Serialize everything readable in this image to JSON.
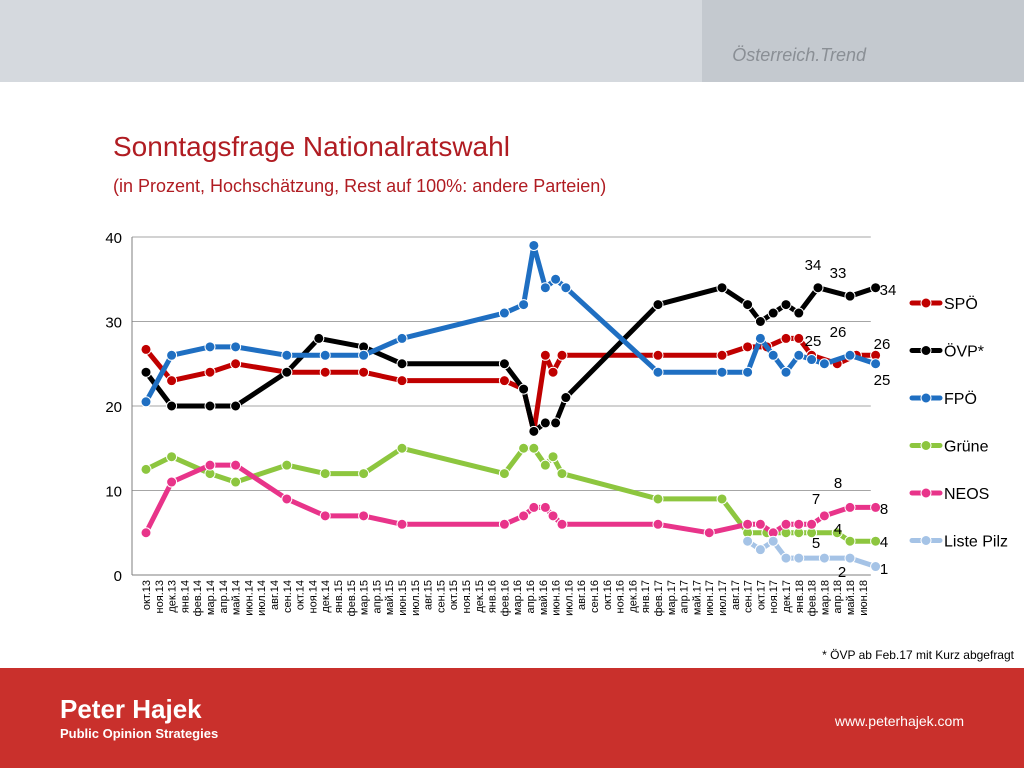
{
  "header": {
    "brand": "Österreich.Trend"
  },
  "titles": {
    "title": "Sonntagsfrage Nationalratswahl",
    "subtitle": "(in Prozent, Hochschätzung, Rest auf 100%: andere Parteien)"
  },
  "footnote": "* ÖVP ab Feb.17 mit Kurz abgefragt",
  "footer": {
    "name": "Peter Hajek",
    "subtitle": "Public Opinion Strategies",
    "url": "www.peterhajek.com"
  },
  "chart_data": {
    "type": "line",
    "title": "Sonntagsfrage Nationalratswahl",
    "subtitle": "(in Prozent, Hochschätzung, Rest auf 100%: andere Parteien)",
    "ylim": [
      0,
      40
    ],
    "yticks": [
      0,
      10,
      20,
      30,
      40
    ],
    "grid": true,
    "legend_position": "right",
    "categories": [
      "окт.13",
      "ноя.13",
      "дек.13",
      "янв.14",
      "фев.14",
      "мар.14",
      "апр.14",
      "май.14",
      "июн.14",
      "июл.14",
      "авг.14",
      "сен.14",
      "окт.14",
      "ноя.14",
      "дек.14",
      "янв.15",
      "фев.15",
      "мар.15",
      "апр.15",
      "май.15",
      "июн.15",
      "июл.15",
      "авг.15",
      "сен.15",
      "окт.15",
      "ноя.15",
      "дек.15",
      "янв.16",
      "фев.16",
      "мар.16",
      "апр.16",
      "май.16",
      "июн.16",
      "июл.16",
      "авг.16",
      "сен.16",
      "окт.16",
      "ноя.16",
      "дек.16",
      "янв.17",
      "фев.17",
      "мар.17",
      "апр.17",
      "май.17",
      "июн.17",
      "июл.17",
      "авг.17",
      "сен.17",
      "окт.17",
      "ноя.17",
      "дек.17",
      "янв.18",
      "фев.18",
      "мар.18",
      "апр.18",
      "май.18",
      "июн.18"
    ],
    "series": [
      {
        "name": "SPÖ",
        "color": "#c00000",
        "points": [
          [
            0,
            26.7
          ],
          [
            2,
            23
          ],
          [
            5,
            24
          ],
          [
            7,
            25
          ],
          [
            11,
            24
          ],
          [
            14,
            24
          ],
          [
            17,
            24
          ],
          [
            20,
            23
          ],
          [
            28,
            23
          ],
          [
            29.5,
            22
          ],
          [
            30.3,
            17
          ],
          [
            31.2,
            26
          ],
          [
            31.8,
            24
          ],
          [
            32.5,
            26
          ],
          [
            40,
            26
          ],
          [
            45,
            26
          ],
          [
            47,
            27
          ],
          [
            48.5,
            27
          ],
          [
            50,
            28
          ],
          [
            51,
            28
          ],
          [
            52,
            26
          ],
          [
            54,
            25
          ],
          [
            55.5,
            26
          ],
          [
            57,
            26
          ]
        ]
      },
      {
        "name": "ÖVP*",
        "color": "#000000",
        "points": [
          [
            0,
            24
          ],
          [
            2,
            20
          ],
          [
            5,
            20
          ],
          [
            7,
            20
          ],
          [
            11,
            24
          ],
          [
            13.5,
            28
          ],
          [
            17,
            27
          ],
          [
            20,
            25
          ],
          [
            28,
            25
          ],
          [
            29.5,
            22
          ],
          [
            30.3,
            17
          ],
          [
            31.2,
            18
          ],
          [
            32,
            18
          ],
          [
            32.8,
            21
          ],
          [
            40,
            32
          ],
          [
            45,
            34
          ],
          [
            47,
            32
          ],
          [
            48,
            30
          ],
          [
            49,
            31
          ],
          [
            50,
            32
          ],
          [
            51,
            31
          ],
          [
            52.5,
            34
          ],
          [
            55,
            33
          ],
          [
            57,
            34
          ]
        ]
      },
      {
        "name": "FPÖ",
        "color": "#1f6fc2",
        "points": [
          [
            0,
            20.5
          ],
          [
            2,
            26
          ],
          [
            5,
            27
          ],
          [
            7,
            27
          ],
          [
            11,
            26
          ],
          [
            14,
            26
          ],
          [
            17,
            26
          ],
          [
            20,
            28
          ],
          [
            28,
            31
          ],
          [
            29.5,
            32
          ],
          [
            30.3,
            39
          ],
          [
            31.2,
            34
          ],
          [
            32,
            35
          ],
          [
            32.8,
            34
          ],
          [
            40,
            24
          ],
          [
            45,
            24
          ],
          [
            47,
            24
          ],
          [
            48,
            28
          ],
          [
            49,
            26
          ],
          [
            50,
            24
          ],
          [
            51,
            26
          ],
          [
            52,
            25.5
          ],
          [
            53,
            25
          ],
          [
            55,
            26
          ],
          [
            57,
            25
          ]
        ]
      },
      {
        "name": "Grüne",
        "color": "#8dc63f",
        "points": [
          [
            0,
            12.5
          ],
          [
            2,
            14
          ],
          [
            5,
            12
          ],
          [
            7,
            11
          ],
          [
            11,
            13
          ],
          [
            14,
            12
          ],
          [
            17,
            12
          ],
          [
            20,
            15
          ],
          [
            28,
            12
          ],
          [
            29.5,
            15
          ],
          [
            30.3,
            15
          ],
          [
            31.2,
            13
          ],
          [
            31.8,
            14
          ],
          [
            32.5,
            12
          ],
          [
            40,
            9
          ],
          [
            45,
            9
          ],
          [
            47,
            5
          ],
          [
            48.5,
            5
          ],
          [
            50,
            5
          ],
          [
            51,
            5
          ],
          [
            52,
            5
          ],
          [
            54,
            5
          ],
          [
            55,
            4
          ],
          [
            57,
            4
          ]
        ]
      },
      {
        "name": "NEOS",
        "color": "#e8348a",
        "points": [
          [
            0,
            5
          ],
          [
            2,
            11
          ],
          [
            5,
            13
          ],
          [
            7,
            13
          ],
          [
            11,
            9
          ],
          [
            14,
            7
          ],
          [
            17,
            7
          ],
          [
            20,
            6
          ],
          [
            28,
            6
          ],
          [
            29.5,
            7
          ],
          [
            30.3,
            8
          ],
          [
            31.2,
            8
          ],
          [
            31.8,
            7
          ],
          [
            32.5,
            6
          ],
          [
            40,
            6
          ],
          [
            44,
            5
          ],
          [
            47,
            6
          ],
          [
            48,
            6
          ],
          [
            49,
            5
          ],
          [
            50,
            6
          ],
          [
            51,
            6
          ],
          [
            52,
            6
          ],
          [
            53,
            7
          ],
          [
            55,
            8
          ],
          [
            57,
            8
          ]
        ]
      },
      {
        "name": "Liste Pilz",
        "color": "#a5c3e6",
        "points": [
          [
            47,
            4
          ],
          [
            48,
            3
          ],
          [
            49,
            4
          ],
          [
            50,
            2
          ],
          [
            51,
            2
          ],
          [
            53,
            2
          ],
          [
            55,
            2
          ],
          [
            57,
            1
          ]
        ]
      }
    ],
    "annotations": [
      {
        "text": "34",
        "series": "ÖVP*",
        "value": 34
      },
      {
        "text": "33",
        "series": "ÖVP*",
        "value": 33
      },
      {
        "text": "34",
        "series": "ÖVP*",
        "value": 34
      },
      {
        "text": "25",
        "series": "FPÖ",
        "value": 25
      },
      {
        "text": "26",
        "series": "FPÖ",
        "value": 26
      },
      {
        "text": "26",
        "series": "SPÖ",
        "value": 26
      },
      {
        "text": "25",
        "series": "FPÖ",
        "value": 25
      },
      {
        "text": "8",
        "series": "NEOS",
        "value": 8
      },
      {
        "text": "7",
        "series": "NEOS",
        "value": 7
      },
      {
        "text": "8",
        "series": "NEOS",
        "value": 8
      },
      {
        "text": "4",
        "series": "Grüne",
        "value": 4
      },
      {
        "text": "5",
        "series": "Grüne",
        "value": 5
      },
      {
        "text": "4",
        "series": "Grüne",
        "value": 4
      },
      {
        "text": "2",
        "series": "Liste Pilz",
        "value": 2
      },
      {
        "text": "1",
        "series": "Liste Pilz",
        "value": 1
      }
    ]
  }
}
